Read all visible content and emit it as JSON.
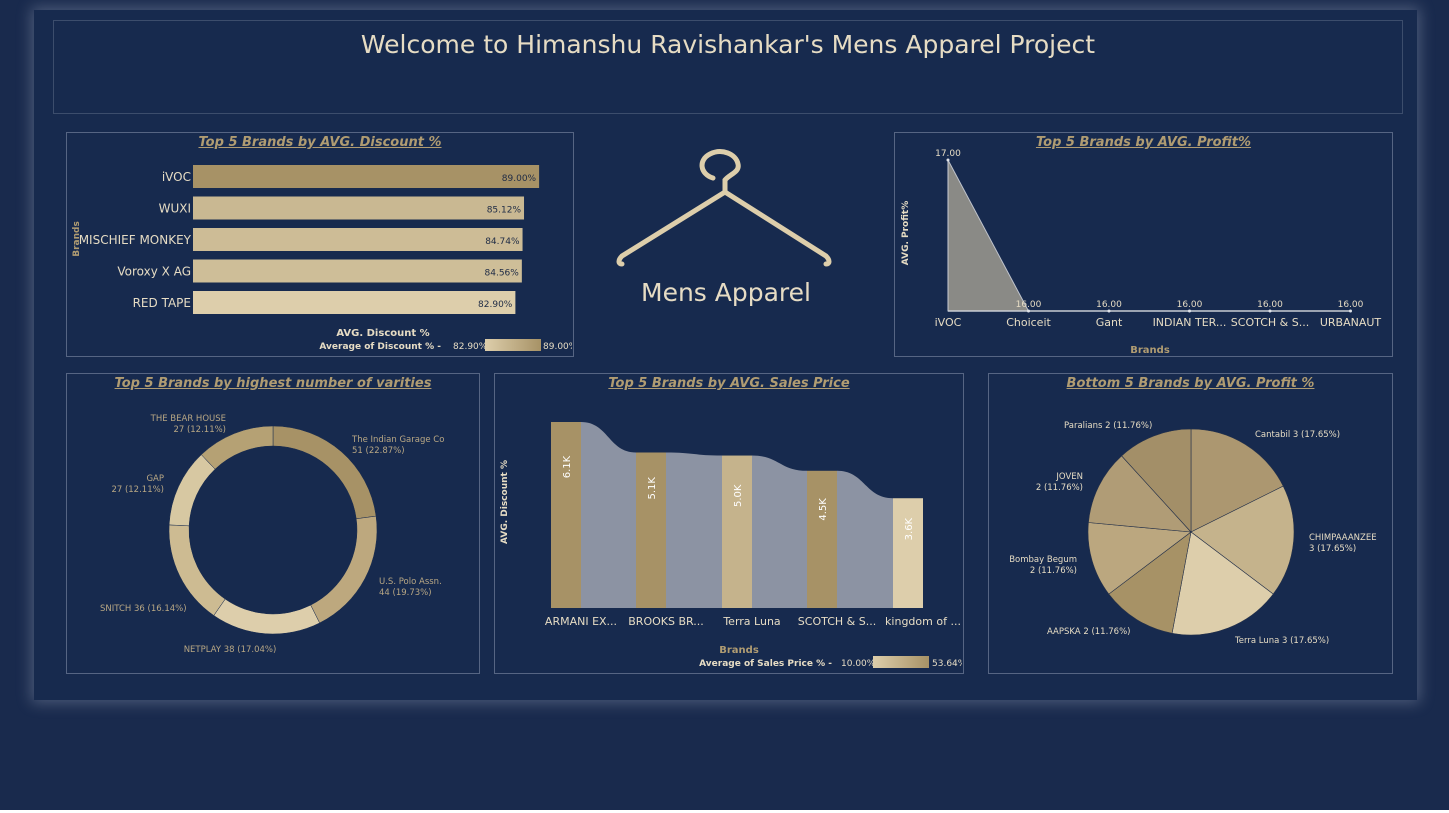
{
  "header": {
    "title": "Welcome to Himanshu Ravishankar's Mens Apparel Project"
  },
  "logo": {
    "label": "Mens Apparel"
  },
  "colors": {
    "background": "#172a4e",
    "accent": "#b09c72",
    "gold_dark": "#a79266",
    "gold_light": "#ddceab",
    "gray": "#8c93a3"
  },
  "chart_data": [
    {
      "id": "discount",
      "type": "bar",
      "orientation": "horizontal",
      "title": "Top 5 Brands by AVG. Discount %",
      "xlabel": "AVG. Discount %",
      "ylabel": "Brands",
      "categories": [
        "iVOC",
        "WUXI",
        "MISCHIEF MONKEY",
        "Voroxy X AG",
        "RED TAPE"
      ],
      "values": [
        89.0,
        85.12,
        84.74,
        84.56,
        82.9
      ],
      "data_labels": [
        "89.00%",
        "85.12%",
        "84.74%",
        "84.56%",
        "82.90%"
      ],
      "xlim": [
        0,
        90
      ],
      "legend": {
        "title": "Average of Discount %",
        "min_label": "82.90%",
        "max_label": "89.00%"
      }
    },
    {
      "id": "profit",
      "type": "area",
      "title": "Top 5 Brands by AVG. Profit%",
      "xlabel": "Brands",
      "ylabel": "AVG. Profit%",
      "categories": [
        "iVOC",
        "Choiceit",
        "Gant",
        "INDIAN TER...",
        "SCOTCH & S...",
        "URBANAUT"
      ],
      "values": [
        17.0,
        16.0,
        16.0,
        16.0,
        16.0,
        16.0
      ],
      "data_labels": [
        "17.00",
        "16.00",
        "16.00",
        "16.00",
        "16.00",
        "16.00"
      ],
      "ylim": [
        16.0,
        17.0
      ]
    },
    {
      "id": "varieties",
      "type": "pie",
      "variant": "donut",
      "title": "Top 5 Brands by highest number of varities",
      "slices": [
        {
          "name": "The Indian Garage Co",
          "value": 51,
          "label": "51 (22.87%)",
          "color": "#a79266"
        },
        {
          "name": "U.S. Polo Assn.",
          "value": 44,
          "label": "44 (19.73%)",
          "color": "#bda87e"
        },
        {
          "name": "NETPLAY",
          "value": 38,
          "label": "38 (17.04%)",
          "color": "#ddceab"
        },
        {
          "name": "SNITCH",
          "value": 36,
          "label": "36 (16.14%)",
          "color": "#cdbb92"
        },
        {
          "name": "GAP",
          "value": 27,
          "label": "27 (12.11%)",
          "color": "#d7c8a2"
        },
        {
          "name": "THE BEAR HOUSE",
          "value": 27,
          "label": "27 (12.11%)",
          "color": "#b5a174"
        }
      ]
    },
    {
      "id": "sales",
      "type": "bar",
      "variant": "ribbon",
      "title": "Top 5 Brands by AVG. Sales Price",
      "xlabel": "Brands",
      "ylabel": "AVG. Discount %",
      "categories": [
        "ARMANI EX...",
        "BROOKS BR...",
        "Terra Luna",
        "SCOTCH & S...",
        "kingdom of ..."
      ],
      "values": [
        6100,
        5100,
        5000,
        4500,
        3600
      ],
      "data_labels": [
        "6.1K",
        "5.1K",
        "5.0K",
        "4.5K",
        "3.6K"
      ],
      "colors": [
        "#a79266",
        "#a79266",
        "#c5b38c",
        "#a79266",
        "#ddceab"
      ],
      "ylim": [
        0,
        6100
      ],
      "legend": {
        "title": "Average of Sales Price %",
        "min_label": "10.00%",
        "max_label": "53.64%"
      }
    },
    {
      "id": "bottom_profit",
      "type": "pie",
      "title": "Bottom 5 Brands by AVG. Profit %",
      "slices": [
        {
          "name": "Cantabil",
          "value": 3,
          "label": "Cantabil 3 (17.65%)",
          "color": "#ac9770"
        },
        {
          "name": "CHIMPAAANZEE",
          "value": 3,
          "label": "3 (17.65%)",
          "color": "#c5b38c"
        },
        {
          "name": "Terra Luna",
          "value": 3,
          "label": "Terra Luna 3 (17.65%)",
          "color": "#ddceab"
        },
        {
          "name": "AAPSKA",
          "value": 2,
          "label": "AAPSKA 2 (11.76%)",
          "color": "#a79266"
        },
        {
          "name": "Bombay Begum",
          "value": 2,
          "label": "2 (11.76%)",
          "color": "#bba77f"
        },
        {
          "name": "JOVEN",
          "value": 2,
          "label": "2 (11.76%)",
          "color": "#b09c76"
        },
        {
          "name": "Paralians",
          "value": 2,
          "label": "Paralians 2 (11.76%)",
          "color": "#a38f68"
        }
      ]
    }
  ]
}
